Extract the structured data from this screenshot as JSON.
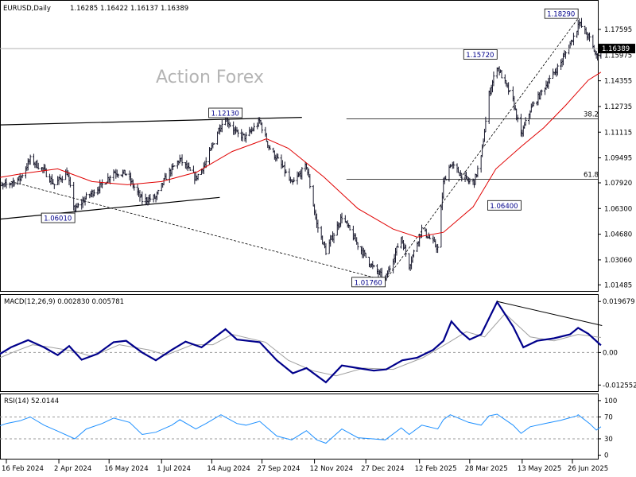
{
  "chart_data": [
    {
      "type": "candlestick",
      "header": {
        "symbol": "EURUSD,Daily",
        "open": "1.16285",
        "high": "1.16422",
        "low": "1.16137",
        "close": "1.16389"
      },
      "watermark": "Action Forex",
      "y_ticks": [
        "1.17595",
        "1.15975",
        "1.14355",
        "1.12735",
        "1.11115",
        "1.09495",
        "1.07920",
        "1.06300",
        "1.04680",
        "1.03060",
        "1.01485"
      ],
      "ylim": [
        1.0125,
        1.1915
      ],
      "current_price": "1.16389",
      "x_ticks": [
        "16 Feb 2024",
        "2 Apr 2024",
        "16 May 2024",
        "1 Jul 2024",
        "14 Aug 2024",
        "27 Sep 2024",
        "12 Nov 2024",
        "27 Dec 2024",
        "12 Feb 2025",
        "28 Mar 2025",
        "13 May 2025",
        "26 Jun 2025"
      ],
      "price_series": [
        [
          "2024-02-05",
          1.075
        ],
        [
          "2024-02-16",
          1.078
        ],
        [
          "2024-02-28",
          1.082
        ],
        [
          "2024-03-08",
          1.094
        ],
        [
          "2024-03-20",
          1.087
        ],
        [
          "2024-03-29",
          1.078
        ],
        [
          "2024-04-09",
          1.086
        ],
        [
          "2024-04-16",
          1.062
        ],
        [
          "2024-04-26",
          1.07
        ],
        [
          "2024-05-10",
          1.078
        ],
        [
          "2024-05-20",
          1.086
        ],
        [
          "2024-05-31",
          1.085
        ],
        [
          "2024-06-14",
          1.068
        ],
        [
          "2024-06-26",
          1.07
        ],
        [
          "2024-07-05",
          1.083
        ],
        [
          "2024-07-17",
          1.094
        ],
        [
          "2024-07-31",
          1.082
        ],
        [
          "2024-08-09",
          1.092
        ],
        [
          "2024-08-20",
          1.113
        ],
        [
          "2024-08-26",
          1.12
        ],
        [
          "2024-09-05",
          1.11
        ],
        [
          "2024-09-13",
          1.108
        ],
        [
          "2024-09-25",
          1.118
        ],
        [
          "2024-10-03",
          1.102
        ],
        [
          "2024-10-16",
          1.088
        ],
        [
          "2024-10-23",
          1.078
        ],
        [
          "2024-11-05",
          1.09
        ],
        [
          "2024-11-14",
          1.053
        ],
        [
          "2024-11-22",
          1.036
        ],
        [
          "2024-12-06",
          1.058
        ],
        [
          "2024-12-20",
          1.04
        ],
        [
          "2025-01-02",
          1.026
        ],
        [
          "2025-01-13",
          1.018
        ],
        [
          "2025-01-27",
          1.045
        ],
        [
          "2025-02-03",
          1.027
        ],
        [
          "2025-02-14",
          1.05
        ],
        [
          "2025-02-28",
          1.038
        ],
        [
          "2025-03-05",
          1.079
        ],
        [
          "2025-03-11",
          1.091
        ],
        [
          "2025-03-27",
          1.08
        ],
        [
          "2025-04-01",
          1.08
        ],
        [
          "2025-04-07",
          1.095
        ],
        [
          "2025-04-14",
          1.135
        ],
        [
          "2025-04-21",
          1.153
        ],
        [
          "2025-05-05",
          1.131
        ],
        [
          "2025-05-12",
          1.109
        ],
        [
          "2025-05-20",
          1.125
        ],
        [
          "2025-06-02",
          1.14
        ],
        [
          "2025-06-16",
          1.155
        ],
        [
          "2025-06-30",
          1.176
        ],
        [
          "2025-07-01",
          1.181
        ],
        [
          "2025-07-11",
          1.17
        ],
        [
          "2025-07-17",
          1.159
        ],
        [
          "2025-07-21",
          1.164
        ]
      ],
      "moving_average": [
        [
          "2024-02-05",
          1.082
        ],
        [
          "2024-03-01",
          1.085
        ],
        [
          "2024-04-01",
          1.088
        ],
        [
          "2024-05-01",
          1.08
        ],
        [
          "2024-06-01",
          1.078
        ],
        [
          "2024-07-01",
          1.08
        ],
        [
          "2024-08-01",
          1.086
        ],
        [
          "2024-09-01",
          1.099
        ],
        [
          "2024-09-20",
          1.104
        ],
        [
          "2024-10-01",
          1.107
        ],
        [
          "2024-10-20",
          1.101
        ],
        [
          "2024-11-20",
          1.083
        ],
        [
          "2024-12-20",
          1.063
        ],
        [
          "2025-01-20",
          1.05
        ],
        [
          "2025-02-10",
          1.045
        ],
        [
          "2025-03-05",
          1.048
        ],
        [
          "2025-03-31",
          1.064
        ],
        [
          "2025-04-20",
          1.088
        ],
        [
          "2025-05-12",
          1.102
        ],
        [
          "2025-06-01",
          1.114
        ],
        [
          "2025-06-20",
          1.128
        ],
        [
          "2025-07-10",
          1.144
        ],
        [
          "2025-07-21",
          1.149
        ]
      ],
      "lines": [
        {
          "from": [
            "2024-01-30",
            1.1155
          ],
          "to": [
            "2024-11-01",
            1.1205
          ]
        },
        {
          "from": [
            "2024-01-30",
            1.0555
          ],
          "to": [
            "2024-08-21",
            1.07
          ]
        },
        {
          "from": [
            "2024-02-20",
            1.08
          ],
          "to": [
            "2025-01-13",
            1.0176
          ],
          "dashed": true
        },
        {
          "from": [
            "2025-01-13",
            1.0176
          ],
          "to": [
            "2025-07-01",
            1.1829
          ],
          "dashed": true
        }
      ],
      "levels": [
        {
          "label": "38.2",
          "price": 1.1195,
          "from_date": "2024-12-10"
        },
        {
          "label": "61.8",
          "price": 1.0815,
          "from_date": "2024-12-10"
        }
      ],
      "annotations": [
        {
          "text": "1.18290",
          "date": "2025-07-01",
          "price": 1.1829,
          "side": "left"
        },
        {
          "text": "1.15720",
          "date": "2025-04-21",
          "price": 1.1572,
          "side": "left"
        },
        {
          "text": "1.12130",
          "date": "2024-08-26",
          "price": 1.1213,
          "side": "center"
        },
        {
          "text": "1.06400",
          "date": "2025-05-12",
          "price": 1.064,
          "side": "left"
        },
        {
          "text": "1.06010",
          "date": "2024-04-16",
          "price": 1.0601,
          "side": "left"
        },
        {
          "text": "1.01760",
          "date": "2025-01-13",
          "price": 1.0176,
          "side": "left"
        }
      ]
    },
    {
      "type": "line",
      "title": "MACD(12,26,9) 0.002830 0.005781",
      "y_ticks": [
        "0.019679",
        "0.00",
        "-0.012552"
      ],
      "ylim": [
        -0.0146,
        0.0219
      ],
      "macd": [
        [
          "2024-02-05",
          -0.002
        ],
        [
          "2024-02-20",
          0.002
        ],
        [
          "2024-03-06",
          0.0048
        ],
        [
          "2024-03-20",
          0.002
        ],
        [
          "2024-04-01",
          -0.001
        ],
        [
          "2024-04-11",
          0.0025
        ],
        [
          "2024-04-22",
          -0.0028
        ],
        [
          "2024-05-06",
          -0.0005
        ],
        [
          "2024-05-20",
          0.004
        ],
        [
          "2024-05-31",
          0.0045
        ],
        [
          "2024-06-14",
          0.0
        ],
        [
          "2024-06-26",
          -0.003
        ],
        [
          "2024-07-10",
          0.001
        ],
        [
          "2024-07-22",
          0.0042
        ],
        [
          "2024-08-05",
          0.002
        ],
        [
          "2024-08-26",
          0.009
        ],
        [
          "2024-09-05",
          0.005
        ],
        [
          "2024-09-25",
          0.004
        ],
        [
          "2024-10-10",
          -0.003
        ],
        [
          "2024-10-24",
          -0.008
        ],
        [
          "2024-11-05",
          -0.006
        ],
        [
          "2024-11-22",
          -0.0115
        ],
        [
          "2024-12-06",
          -0.005
        ],
        [
          "2024-12-20",
          -0.006
        ],
        [
          "2025-01-03",
          -0.007
        ],
        [
          "2025-01-14",
          -0.0065
        ],
        [
          "2025-01-28",
          -0.003
        ],
        [
          "2025-02-10",
          -0.002
        ],
        [
          "2025-02-24",
          0.001
        ],
        [
          "2025-03-05",
          0.0045
        ],
        [
          "2025-03-12",
          0.012
        ],
        [
          "2025-03-20",
          0.008
        ],
        [
          "2025-03-28",
          0.005
        ],
        [
          "2025-04-07",
          0.007
        ],
        [
          "2025-04-21",
          0.0195
        ],
        [
          "2025-05-05",
          0.01
        ],
        [
          "2025-05-14",
          0.002
        ],
        [
          "2025-05-26",
          0.0045
        ],
        [
          "2025-06-10",
          0.0055
        ],
        [
          "2025-06-24",
          0.007
        ],
        [
          "2025-07-01",
          0.0095
        ],
        [
          "2025-07-10",
          0.0072
        ],
        [
          "2025-07-21",
          0.0028
        ]
      ],
      "signal": [
        [
          "2024-02-05",
          -0.003
        ],
        [
          "2024-02-24",
          0.0005
        ],
        [
          "2024-03-10",
          0.003
        ],
        [
          "2024-03-26",
          0.002
        ],
        [
          "2024-04-15",
          0.0005
        ],
        [
          "2024-05-01",
          -0.0015
        ],
        [
          "2024-05-25",
          0.003
        ],
        [
          "2024-06-20",
          0.001
        ],
        [
          "2024-07-05",
          -0.001
        ],
        [
          "2024-07-28",
          0.003
        ],
        [
          "2024-08-15",
          0.003
        ],
        [
          "2024-09-01",
          0.007
        ],
        [
          "2024-09-30",
          0.004
        ],
        [
          "2024-10-20",
          -0.003
        ],
        [
          "2024-11-10",
          -0.007
        ],
        [
          "2024-12-01",
          -0.009
        ],
        [
          "2024-12-25",
          -0.006
        ],
        [
          "2025-01-20",
          -0.0065
        ],
        [
          "2025-02-15",
          -0.002
        ],
        [
          "2025-03-10",
          0.004
        ],
        [
          "2025-03-25",
          0.008
        ],
        [
          "2025-04-10",
          0.006
        ],
        [
          "2025-04-28",
          0.015
        ],
        [
          "2025-05-20",
          0.006
        ],
        [
          "2025-06-10",
          0.0045
        ],
        [
          "2025-07-01",
          0.007
        ],
        [
          "2025-07-21",
          0.0058
        ]
      ],
      "trendline": {
        "from": [
          "2025-04-21",
          0.0197
        ],
        "to": [
          "2025-07-22",
          0.0104
        ]
      },
      "zero_line": true
    },
    {
      "type": "line",
      "title": "RSI(14) 52.0144",
      "y_ticks": [
        "100",
        "70",
        "30",
        "0"
      ],
      "ylim": [
        -5,
        110
      ],
      "levels": [
        70,
        30
      ],
      "rsi": [
        [
          "2024-02-05",
          50
        ],
        [
          "2024-02-16",
          58
        ],
        [
          "2024-02-28",
          63
        ],
        [
          "2024-03-08",
          70
        ],
        [
          "2024-03-20",
          55
        ],
        [
          "2024-04-01",
          44
        ],
        [
          "2024-04-16",
          30
        ],
        [
          "2024-04-26",
          48
        ],
        [
          "2024-05-10",
          58
        ],
        [
          "2024-05-20",
          68
        ],
        [
          "2024-06-03",
          60
        ],
        [
          "2024-06-14",
          38
        ],
        [
          "2024-06-26",
          42
        ],
        [
          "2024-07-10",
          55
        ],
        [
          "2024-07-17",
          65
        ],
        [
          "2024-07-31",
          48
        ],
        [
          "2024-08-09",
          58
        ],
        [
          "2024-08-22",
          74
        ],
        [
          "2024-09-05",
          58
        ],
        [
          "2024-09-13",
          55
        ],
        [
          "2024-09-25",
          62
        ],
        [
          "2024-10-10",
          35
        ],
        [
          "2024-10-23",
          28
        ],
        [
          "2024-11-05",
          45
        ],
        [
          "2024-11-14",
          28
        ],
        [
          "2024-11-22",
          22
        ],
        [
          "2024-12-06",
          48
        ],
        [
          "2024-12-20",
          32
        ],
        [
          "2025-01-02",
          30
        ],
        [
          "2025-01-13",
          28
        ],
        [
          "2025-01-27",
          50
        ],
        [
          "2025-02-03",
          38
        ],
        [
          "2025-02-14",
          55
        ],
        [
          "2025-02-28",
          48
        ],
        [
          "2025-03-05",
          65
        ],
        [
          "2025-03-11",
          74
        ],
        [
          "2025-03-27",
          60
        ],
        [
          "2025-04-07",
          55
        ],
        [
          "2025-04-14",
          72
        ],
        [
          "2025-04-21",
          75
        ],
        [
          "2025-05-05",
          55
        ],
        [
          "2025-05-12",
          40
        ],
        [
          "2025-05-20",
          52
        ],
        [
          "2025-06-02",
          58
        ],
        [
          "2025-06-16",
          64
        ],
        [
          "2025-06-30",
          72
        ],
        [
          "2025-07-01",
          74
        ],
        [
          "2025-07-11",
          58
        ],
        [
          "2025-07-17",
          46
        ],
        [
          "2025-07-21",
          52
        ]
      ]
    }
  ]
}
